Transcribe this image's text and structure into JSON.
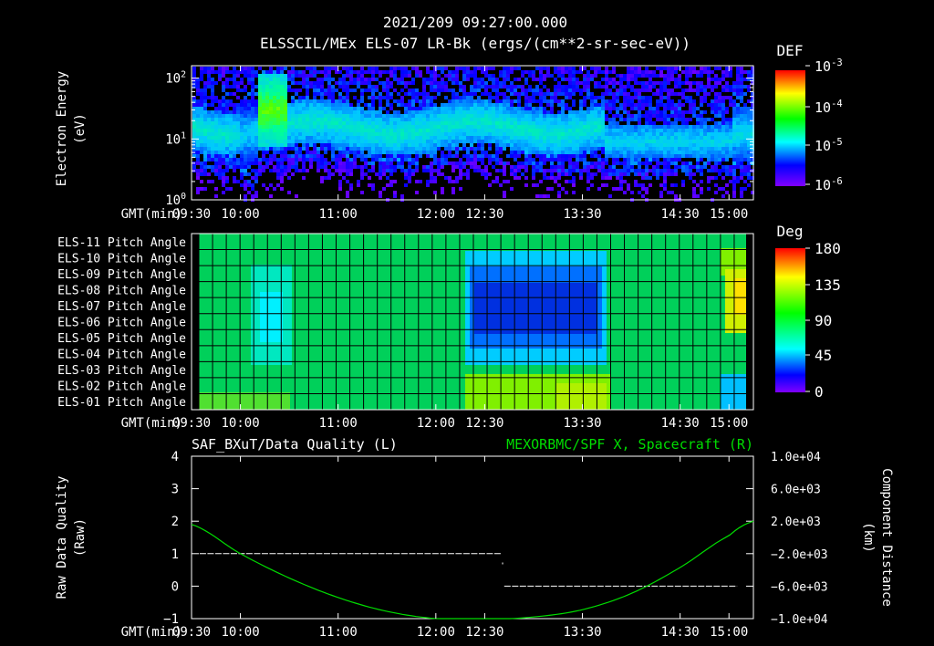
{
  "header": {
    "timestamp": "2021/209 09:27:00.000",
    "subtitle": "ELSSCIL/MEx ELS-07 LR-Bk  (ergs/(cm**2-sr-sec-eV))"
  },
  "colors": {
    "background": "#000000",
    "axis": "#ffffff",
    "right_series": "#00dd00",
    "left_series": "#ffffff"
  },
  "time_axis": {
    "label": "GMT(min)",
    "ticks": [
      "09:30",
      "10:00",
      "11:00",
      "12:00",
      "12:30",
      "13:30",
      "14:30",
      "15:00"
    ],
    "minutes": [
      570,
      600,
      660,
      720,
      750,
      810,
      870,
      900
    ],
    "range_min": [
      570,
      915
    ]
  },
  "chart_data": [
    {
      "type": "heatmap",
      "name": "electron-spectrogram",
      "ylabel_line1": "Electron Energy",
      "ylabel_line2": "(eV)",
      "y_scale": "log",
      "ylim": [
        1,
        160
      ],
      "y_ticks": [
        {
          "base": "10",
          "exp": "0",
          "value": 1
        },
        {
          "base": "10",
          "exp": "1",
          "value": 10
        },
        {
          "base": "10",
          "exp": "2",
          "value": 100
        }
      ],
      "colorbar": {
        "title": "DEF",
        "ticks": [
          {
            "base": "10",
            "exp": "-3"
          },
          {
            "base": "10",
            "exp": "-4"
          },
          {
            "base": "10",
            "exp": "-5"
          },
          {
            "base": "10",
            "exp": "-6"
          }
        ]
      }
    },
    {
      "type": "heatmap",
      "name": "pitch-angle",
      "rows": [
        "ELS-11 Pitch Angle",
        "ELS-10 Pitch Angle",
        "ELS-09 Pitch Angle",
        "ELS-08 Pitch Angle",
        "ELS-07 Pitch Angle",
        "ELS-06 Pitch Angle",
        "ELS-05 Pitch Angle",
        "ELS-04 Pitch Angle",
        "ELS-03 Pitch Angle",
        "ELS-02 Pitch Angle",
        "ELS-01 Pitch Angle"
      ],
      "colorbar": {
        "title": "Deg",
        "ticks": [
          "180",
          "135",
          "90",
          "45",
          "0"
        ],
        "range": [
          0,
          180
        ]
      }
    },
    {
      "type": "line",
      "name": "quality-and-position",
      "title_left": "SAF_BXuT/Data Quality (L)",
      "title_right": "MEXORBMC/SPF X, Spacecraft (R)",
      "ylabel_left_line1": "Raw Data Quality",
      "ylabel_left_line2": "(Raw)",
      "ylabel_right_line1": "Component Distance",
      "ylabel_right_line2": "(km)",
      "left_ylim": [
        -1,
        4
      ],
      "left_ticks": [
        "4",
        "3",
        "2",
        "1",
        "0",
        "−1"
      ],
      "left_tick_values": [
        4,
        3,
        2,
        1,
        0,
        -1
      ],
      "right_ylim": [
        -10000,
        10000
      ],
      "right_ticks": [
        "1.0e+04",
        "6.0e+03",
        "2.0e+03",
        "−2.0e+03",
        "−6.0e+03",
        "−1.0e+04"
      ],
      "right_tick_values": [
        10000,
        6000,
        2000,
        -2000,
        -6000,
        -10000
      ],
      "data_quality_segments": [
        {
          "x_start_min": 575,
          "x_end_min": 760,
          "value": 1
        },
        {
          "x_start_min": 762,
          "x_end_min": 905,
          "value": 0
        }
      ],
      "spacecraft_x": {
        "x_min": [
          570,
          600,
          630,
          660,
          690,
          720,
          750,
          780,
          810,
          840,
          870,
          900,
          915
        ],
        "km": [
          1600,
          -2000,
          -5000,
          -7400,
          -9100,
          -10000,
          -10100,
          -9800,
          -8900,
          -6900,
          -3700,
          200,
          2000
        ]
      }
    }
  ]
}
